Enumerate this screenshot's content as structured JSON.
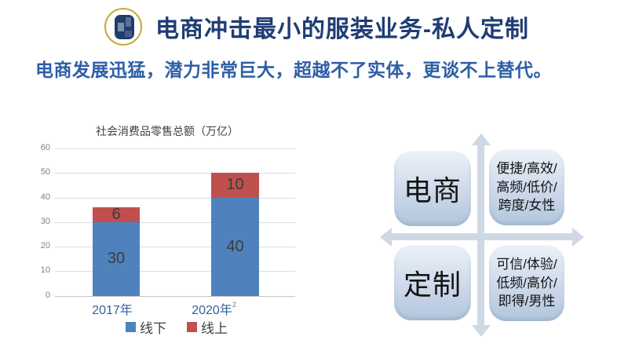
{
  "header": {
    "title": "电商冲击最小的服装业务-私人定制",
    "logo": "company-logo"
  },
  "subtitle": "电商发展迅猛，潜力非常巨大，超越不了实体，更谈不上替代。",
  "chart_data": {
    "type": "bar",
    "stacked": true,
    "title": "社会消费品零售总额（万亿）",
    "categories": [
      "2017年",
      "2020年"
    ],
    "series": [
      {
        "key": "offline",
        "name": "线下",
        "color": "#4f81bd",
        "values": [
          30,
          40
        ]
      },
      {
        "key": "online",
        "name": "线上",
        "color": "#c0504d",
        "values": [
          6,
          10
        ]
      }
    ],
    "totals": [
      36,
      50
    ],
    "ylim": [
      0,
      60
    ],
    "yticks": [
      0,
      10,
      20,
      30,
      40,
      50,
      60
    ],
    "grid": true,
    "legend_position": "bottom",
    "footnote_marker": "2"
  },
  "quadrant": {
    "top_left": "电商",
    "top_right": "便捷/高效/\n高频/低价/\n跨度/女性",
    "bottom_left": "定制",
    "bottom_right": "可信/体验/\n低频/高价/\n即得/男性"
  },
  "colors": {
    "title": "#1f3c74",
    "subtitle": "#2e5ea6",
    "offline_bar": "#4f81bd",
    "online_bar": "#c0504d",
    "category_label": "#35619f",
    "axis_text": "#808080",
    "data_label": "#3b3b3b",
    "arrow": "#cfd8e5",
    "box_gradient_top": "#ebf1f8",
    "box_gradient_bottom": "#b2c5dc",
    "logo_ring": "#c9a93a",
    "logo_fill": "#223d6b"
  }
}
